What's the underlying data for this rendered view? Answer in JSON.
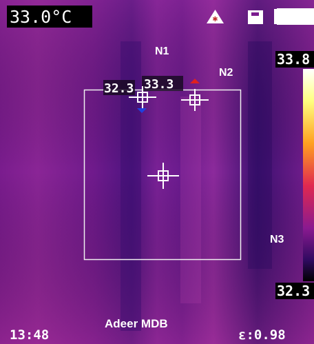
{
  "status_bar": {
    "temperature": "33.0°C"
  },
  "markers": [
    {
      "label": "N1"
    },
    {
      "label": "N2"
    },
    {
      "label": "N3"
    }
  ],
  "spots": [
    {
      "reading": "32.3"
    },
    {
      "reading": "33.3"
    }
  ],
  "scale": {
    "max": "33.8",
    "min": "32.3"
  },
  "footer": {
    "time": "13:48",
    "brand": "Adeer MDB",
    "emissivity": "ε:0.98"
  }
}
